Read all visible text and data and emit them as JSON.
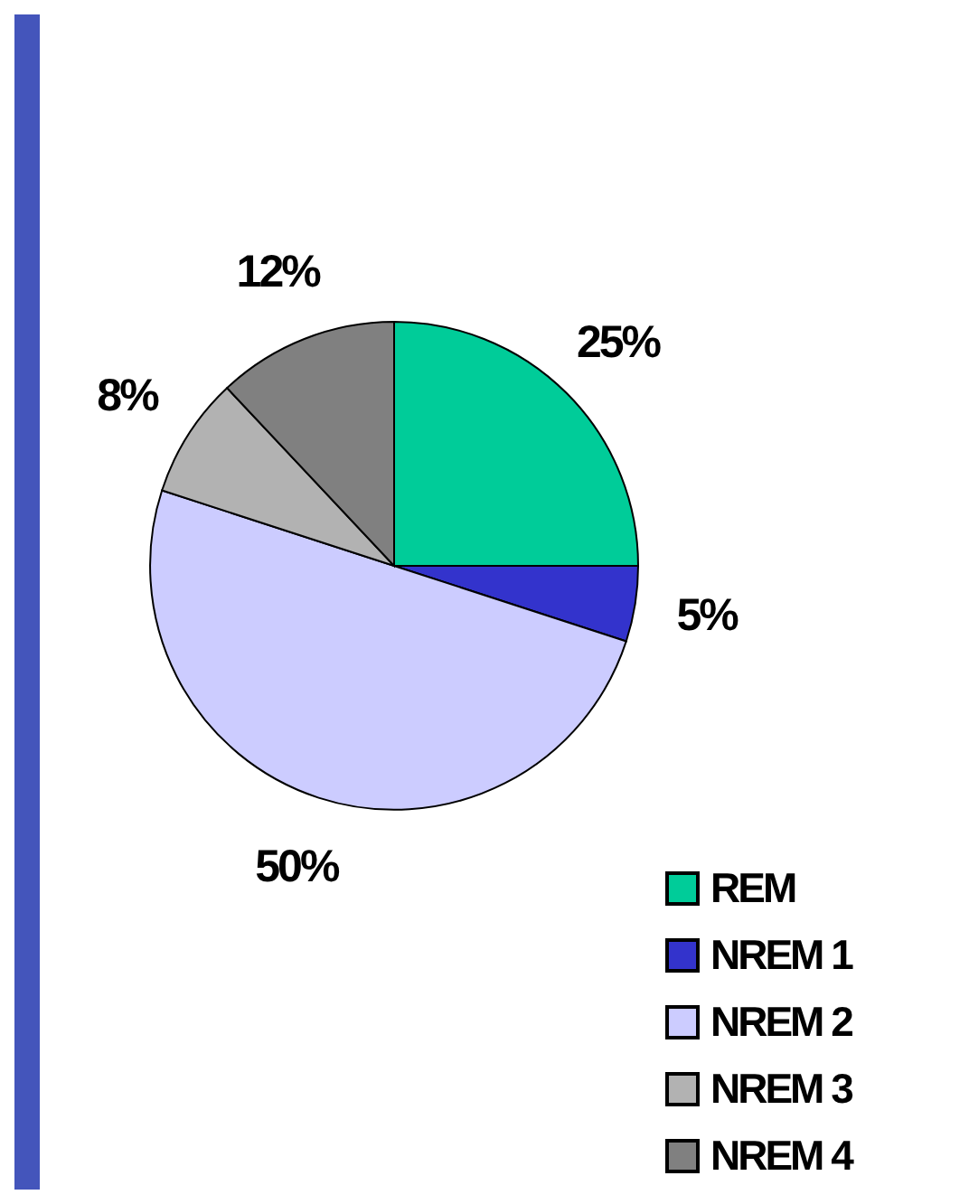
{
  "chart_data": {
    "type": "pie",
    "categories": [
      "REM",
      "NREM 1",
      "NREM 2",
      "NREM 3",
      "NREM 4"
    ],
    "values": [
      25,
      5,
      50,
      8,
      12
    ],
    "value_labels": [
      "25%",
      "5%",
      "50%",
      "8%",
      "12%"
    ],
    "colors": [
      "#00cc99",
      "#3333cc",
      "#ccccff",
      "#b2b2b2",
      "#808080"
    ],
    "legend": "bottom right"
  }
}
